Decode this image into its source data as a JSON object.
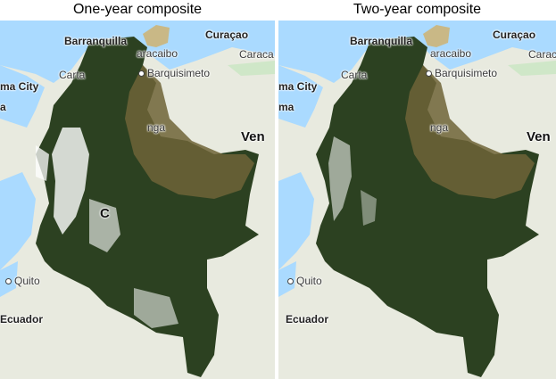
{
  "panels": [
    {
      "title": "One-year composite",
      "labels": {
        "barranquilla": "Barranquilla",
        "maracaibo": "aracaibo",
        "curacao": "Curaçao",
        "caracas": "Caraca",
        "cartagena": "Carta",
        "barquisimeto": "Barquisimeto",
        "panama": "ma City",
        "panama2": "a",
        "venezuela": "Ven",
        "bucaramanga": "nga",
        "colombia": "C",
        "quito": "Quito",
        "ecuador": "Ecuador"
      }
    },
    {
      "title": "Two-year composite",
      "labels": {
        "barranquilla": "Barranquilla",
        "maracaibo": "aracaibo",
        "curacao": "Curaçao",
        "caracas": "Carac",
        "cartagena": "Carta",
        "barquisimeto": "Barquisimeto",
        "panama": "ma City",
        "panama2": "ma",
        "venezuela": "Ven",
        "bucaramanga": "nga",
        "colombia": "",
        "quito": "Quito",
        "ecuador": "Ecuador"
      }
    }
  ],
  "colors": {
    "sea": "#aadaff",
    "land": "#e8eadf",
    "forest": "#2c4121",
    "forest_light": "#4a5a32",
    "savanna": "#6e6437",
    "clouds": "#ffffff"
  }
}
